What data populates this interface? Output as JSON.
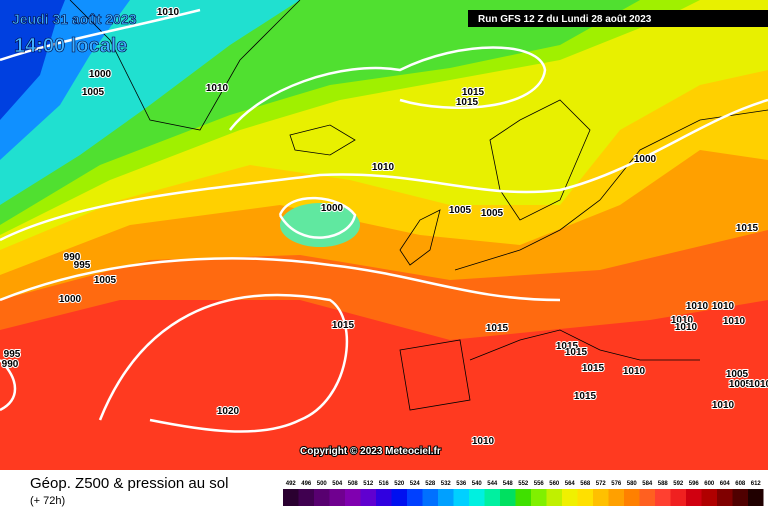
{
  "header": {
    "date": "Jeudi 31 août 2023",
    "time": "14:00 locale",
    "run": "Run GFS 12 Z du Lundi 28 août 2023"
  },
  "copyright": "Copyright © 2023 Meteociel.fr",
  "footer": {
    "title": "Géop. Z500 & pression au sol",
    "lead": "(+ 72h)"
  },
  "isobars": [
    "1010",
    "1000",
    "1005",
    "1010",
    "1015",
    "1015",
    "1010",
    "1000",
    "1000",
    "1005",
    "1005",
    "1015",
    "990",
    "995",
    "1005",
    "1000",
    "1015",
    "1015",
    "1010",
    "1010",
    "1010",
    "1010",
    "1010",
    "1015",
    "1015",
    "1015",
    "995",
    "990",
    "1010",
    "1005",
    "1005",
    "1010",
    "1015",
    "1010",
    "1020",
    "1010"
  ],
  "scale": [
    {
      "label": "492",
      "color": "#2a0030"
    },
    {
      "label": "496",
      "color": "#400050"
    },
    {
      "label": "500",
      "color": "#580070"
    },
    {
      "label": "504",
      "color": "#700090"
    },
    {
      "label": "508",
      "color": "#8000b0"
    },
    {
      "label": "512",
      "color": "#6000d0"
    },
    {
      "label": "516",
      "color": "#3000e0"
    },
    {
      "label": "520",
      "color": "#0010f0"
    },
    {
      "label": "524",
      "color": "#0040ff"
    },
    {
      "label": "528",
      "color": "#0070ff"
    },
    {
      "label": "532",
      "color": "#00a0ff"
    },
    {
      "label": "536",
      "color": "#00d0ff"
    },
    {
      "label": "540",
      "color": "#00f0e0"
    },
    {
      "label": "544",
      "color": "#00f0a0"
    },
    {
      "label": "548",
      "color": "#00e060"
    },
    {
      "label": "552",
      "color": "#40e000"
    },
    {
      "label": "556",
      "color": "#80f000"
    },
    {
      "label": "560",
      "color": "#c0f000"
    },
    {
      "label": "564",
      "color": "#f0f000"
    },
    {
      "label": "568",
      "color": "#ffe000"
    },
    {
      "label": "572",
      "color": "#ffc000"
    },
    {
      "label": "576",
      "color": "#ffa000"
    },
    {
      "label": "580",
      "color": "#ff8000"
    },
    {
      "label": "584",
      "color": "#ff6020"
    },
    {
      "label": "588",
      "color": "#ff4030"
    },
    {
      "label": "592",
      "color": "#f02020"
    },
    {
      "label": "596",
      "color": "#d00010"
    },
    {
      "label": "600",
      "color": "#b00000"
    },
    {
      "label": "604",
      "color": "#800000"
    },
    {
      "label": "608",
      "color": "#500000"
    },
    {
      "label": "612",
      "color": "#200000"
    }
  ]
}
